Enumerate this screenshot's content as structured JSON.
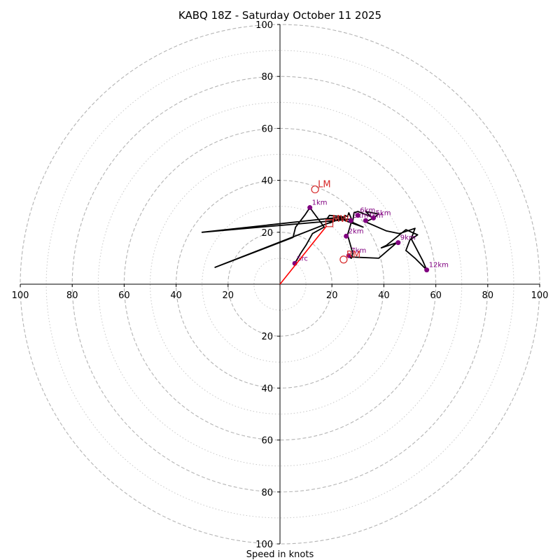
{
  "chart_data": {
    "type": "hodograph",
    "title": "KABQ 18Z - Saturday October 11 2025",
    "xlabel": "Speed in knots",
    "range": [
      -100,
      100
    ],
    "axis_ticks": [
      "100",
      "80",
      "60",
      "40",
      "20",
      "20",
      "40",
      "60",
      "80",
      "100"
    ],
    "y_ticks": [
      "100",
      "80",
      "60",
      "40",
      "20",
      "20",
      "40",
      "60",
      "80",
      "100"
    ],
    "rings_dashed": [
      20,
      40,
      60,
      80,
      100
    ],
    "rings_dotted": [
      10,
      30,
      50,
      70,
      90
    ],
    "trace_color": "#000000",
    "height_marker_color": "#800080",
    "motion_color": "#d62728",
    "trace": [
      [
        5.7,
        8
      ],
      [
        8,
        12
      ],
      [
        10,
        15
      ],
      [
        12.5,
        19.5
      ],
      [
        17,
        22
      ],
      [
        11.5,
        29.5
      ],
      [
        9.5,
        26.5
      ],
      [
        6,
        22
      ],
      [
        5,
        18
      ],
      [
        -25,
        6.5
      ],
      [
        25,
        26
      ],
      [
        -30,
        20
      ],
      [
        27,
        25
      ],
      [
        18,
        25
      ],
      [
        19,
        26.5
      ],
      [
        24,
        26
      ],
      [
        25,
        24.5
      ],
      [
        32,
        22
      ],
      [
        27.5,
        24
      ],
      [
        26,
        19
      ],
      [
        28,
        12
      ],
      [
        27.5,
        10
      ],
      [
        26.5,
        10.5
      ],
      [
        38,
        10
      ],
      [
        45,
        16
      ],
      [
        39,
        14
      ],
      [
        41,
        15
      ],
      [
        48.5,
        21
      ],
      [
        53,
        19
      ],
      [
        50,
        17
      ],
      [
        48.5,
        13
      ],
      [
        52,
        10
      ],
      [
        56.5,
        5.5
      ],
      [
        55,
        9
      ],
      [
        50.5,
        17.5
      ],
      [
        52,
        21.5
      ],
      [
        46,
        19.5
      ],
      [
        41,
        20.5
      ],
      [
        33,
        24
      ],
      [
        36,
        25.5
      ],
      [
        38,
        27
      ],
      [
        33,
        28
      ],
      [
        35,
        26
      ],
      [
        30,
        28
      ],
      [
        28.5,
        27.5
      ],
      [
        28,
        24
      ],
      [
        26.5,
        27.5
      ],
      [
        26,
        26
      ],
      [
        25,
        26.5
      ],
      [
        24.5,
        25
      ],
      [
        21.5,
        24.5
      ],
      [
        19,
        23.5
      ]
    ],
    "height_markers": [
      {
        "label": "Src",
        "u": 5.7,
        "v": 8
      },
      {
        "label": "1km",
        "u": 11.5,
        "v": 29.5
      },
      {
        "label": "2km",
        "u": 25.5,
        "v": 18.5
      },
      {
        "label": "3km",
        "u": 27.3,
        "v": 24.5
      },
      {
        "label": "4km",
        "u": 33,
        "v": 24.5
      },
      {
        "label": "5km",
        "u": 36,
        "v": 25.5
      },
      {
        "label": "6km",
        "u": 30,
        "v": 26.5
      },
      {
        "label": "7km",
        "u": 26.5,
        "v": 11
      },
      {
        "label": "9km",
        "u": 45.5,
        "v": 16
      },
      {
        "label": "12km",
        "u": 56.5,
        "v": 5.5
      }
    ],
    "mean_wind": {
      "label": "MW",
      "u": 19,
      "v": 23.5
    },
    "storm_motions": [
      {
        "label": "LM",
        "u": 13.5,
        "v": 36.5
      },
      {
        "label": "RM",
        "u": 24.5,
        "v": 9.5
      }
    ],
    "motion_vector": {
      "u": 18,
      "v": 22.5
    }
  }
}
